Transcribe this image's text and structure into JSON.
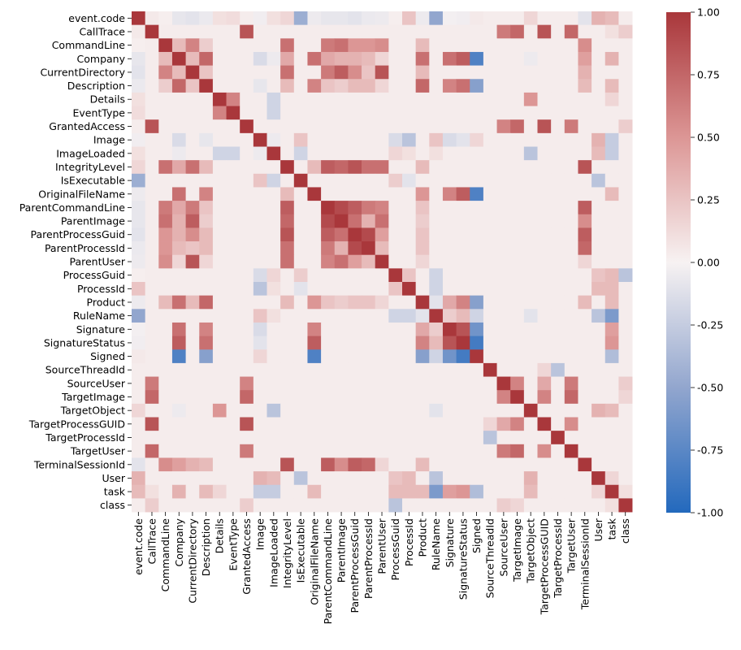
{
  "chart_data": {
    "type": "heatmap",
    "title": "",
    "labels": [
      "event.code",
      "CallTrace",
      "CommandLine",
      "Company",
      "CurrentDirectory",
      "Description",
      "Details",
      "EventType",
      "GrantedAccess",
      "Image",
      "ImageLoaded",
      "IntegrityLevel",
      "IsExecutable",
      "OriginalFileName",
      "ParentCommandLine",
      "ParentImage",
      "ParentProcessGuid",
      "ParentProcessId",
      "ParentUser",
      "ProcessGuid",
      "ProcessId",
      "Product",
      "RuleName",
      "Signature",
      "SignatureStatus",
      "Signed",
      "SourceThreadId",
      "SourceUser",
      "TargetImage",
      "TargetObject",
      "TargetProcessGUID",
      "TargetProcessId",
      "TargetUser",
      "TerminalSessionId",
      "User",
      "task",
      "class"
    ],
    "vmin": -1.0,
    "vmax": 1.0,
    "colormap": "vlag",
    "colorbar_ticks": [
      "1.00",
      "0.75",
      "0.50",
      "0.25",
      "0.00",
      "-0.25",
      "-0.50",
      "-0.75",
      "-1.00"
    ],
    "colorbar_tick_values": [
      1.0,
      0.75,
      0.5,
      0.25,
      0.0,
      -0.25,
      -0.5,
      -0.75,
      -1.0
    ],
    "default_value": 0.03,
    "cells": [
      [
        0,
        1,
        0.05
      ],
      [
        0,
        2,
        0.02
      ],
      [
        0,
        3,
        -0.08
      ],
      [
        0,
        4,
        -0.1
      ],
      [
        0,
        5,
        -0.06
      ],
      [
        0,
        6,
        0.1
      ],
      [
        0,
        7,
        0.12
      ],
      [
        0,
        9,
        -0.03
      ],
      [
        0,
        10,
        0.1
      ],
      [
        0,
        11,
        0.15
      ],
      [
        0,
        12,
        -0.45
      ],
      [
        0,
        13,
        -0.05
      ],
      [
        0,
        14,
        -0.08
      ],
      [
        0,
        15,
        -0.08
      ],
      [
        0,
        16,
        -0.1
      ],
      [
        0,
        17,
        -0.06
      ],
      [
        0,
        18,
        -0.05
      ],
      [
        0,
        19,
        0.02
      ],
      [
        0,
        20,
        0.25
      ],
      [
        0,
        21,
        -0.05
      ],
      [
        0,
        22,
        -0.5
      ],
      [
        0,
        23,
        -0.02
      ],
      [
        0,
        24,
        -0.03
      ],
      [
        0,
        25,
        0.05
      ],
      [
        0,
        29,
        0.15
      ],
      [
        0,
        33,
        -0.1
      ],
      [
        0,
        34,
        0.35
      ],
      [
        0,
        35,
        0.3
      ],
      [
        1,
        8,
        0.85
      ],
      [
        1,
        27,
        0.65
      ],
      [
        1,
        28,
        0.75
      ],
      [
        1,
        30,
        0.85
      ],
      [
        1,
        32,
        0.75
      ],
      [
        1,
        35,
        0.1
      ],
      [
        1,
        36,
        0.2
      ],
      [
        2,
        3,
        0.3
      ],
      [
        2,
        4,
        0.6
      ],
      [
        2,
        5,
        0.2
      ],
      [
        2,
        11,
        0.7
      ],
      [
        2,
        14,
        0.65
      ],
      [
        2,
        15,
        0.7
      ],
      [
        2,
        16,
        0.5
      ],
      [
        2,
        17,
        0.5
      ],
      [
        2,
        18,
        0.55
      ],
      [
        2,
        21,
        0.3
      ],
      [
        2,
        33,
        0.55
      ],
      [
        3,
        4,
        0.3
      ],
      [
        3,
        5,
        0.75
      ],
      [
        3,
        9,
        -0.15
      ],
      [
        3,
        10,
        -0.05
      ],
      [
        3,
        11,
        0.4
      ],
      [
        3,
        13,
        0.7
      ],
      [
        3,
        14,
        0.4
      ],
      [
        3,
        15,
        0.35
      ],
      [
        3,
        16,
        0.35
      ],
      [
        3,
        17,
        0.3
      ],
      [
        3,
        18,
        0.15
      ],
      [
        3,
        21,
        0.7
      ],
      [
        3,
        23,
        0.7
      ],
      [
        3,
        24,
        0.8
      ],
      [
        3,
        25,
        -0.8
      ],
      [
        3,
        29,
        -0.05
      ],
      [
        3,
        33,
        0.45
      ],
      [
        3,
        35,
        0.35
      ],
      [
        4,
        5,
        0.25
      ],
      [
        4,
        11,
        0.7
      ],
      [
        4,
        14,
        0.65
      ],
      [
        4,
        15,
        0.8
      ],
      [
        4,
        16,
        0.55
      ],
      [
        4,
        17,
        0.25
      ],
      [
        4,
        18,
        0.85
      ],
      [
        4,
        21,
        0.3
      ],
      [
        4,
        33,
        0.35
      ],
      [
        5,
        9,
        -0.08
      ],
      [
        5,
        11,
        0.3
      ],
      [
        5,
        13,
        0.6
      ],
      [
        5,
        14,
        0.25
      ],
      [
        5,
        15,
        0.2
      ],
      [
        5,
        16,
        0.3
      ],
      [
        5,
        17,
        0.3
      ],
      [
        5,
        18,
        0.15
      ],
      [
        5,
        21,
        0.75
      ],
      [
        5,
        23,
        0.6
      ],
      [
        5,
        24,
        0.7
      ],
      [
        5,
        25,
        -0.55
      ],
      [
        5,
        33,
        0.3
      ],
      [
        5,
        35,
        0.3
      ],
      [
        6,
        7,
        0.6
      ],
      [
        6,
        10,
        -0.2
      ],
      [
        6,
        29,
        0.5
      ],
      [
        6,
        35,
        0.15
      ],
      [
        7,
        10,
        -0.2
      ],
      [
        8,
        30,
        0.85
      ],
      [
        8,
        27,
        0.6
      ],
      [
        8,
        28,
        0.75
      ],
      [
        8,
        32,
        0.65
      ],
      [
        8,
        36,
        0.2
      ],
      [
        9,
        10,
        -0.05
      ],
      [
        9,
        12,
        0.25
      ],
      [
        9,
        19,
        -0.15
      ],
      [
        9,
        20,
        -0.3
      ],
      [
        9,
        22,
        0.25
      ],
      [
        9,
        23,
        -0.15
      ],
      [
        9,
        24,
        -0.1
      ],
      [
        9,
        25,
        0.15
      ],
      [
        9,
        34,
        0.35
      ],
      [
        9,
        35,
        -0.25
      ],
      [
        10,
        12,
        -0.2
      ],
      [
        10,
        19,
        0.15
      ],
      [
        10,
        20,
        0.1
      ],
      [
        10,
        22,
        0.1
      ],
      [
        10,
        29,
        -0.3
      ],
      [
        10,
        34,
        0.3
      ],
      [
        10,
        35,
        -0.25
      ],
      [
        11,
        13,
        0.3
      ],
      [
        11,
        14,
        0.8
      ],
      [
        11,
        15,
        0.75
      ],
      [
        11,
        16,
        0.85
      ],
      [
        11,
        17,
        0.7
      ],
      [
        11,
        18,
        0.7
      ],
      [
        11,
        21,
        0.3
      ],
      [
        11,
        33,
        0.85
      ],
      [
        12,
        19,
        0.2
      ],
      [
        12,
        20,
        -0.1
      ],
      [
        12,
        34,
        -0.3
      ],
      [
        13,
        21,
        0.5
      ],
      [
        13,
        23,
        0.6
      ],
      [
        13,
        24,
        0.8
      ],
      [
        13,
        25,
        -0.8
      ],
      [
        13,
        35,
        0.3
      ],
      [
        14,
        15,
        0.9
      ],
      [
        14,
        16,
        0.8
      ],
      [
        14,
        17,
        0.65
      ],
      [
        14,
        18,
        0.6
      ],
      [
        14,
        21,
        0.25
      ],
      [
        14,
        33,
        0.8
      ],
      [
        15,
        16,
        0.7
      ],
      [
        15,
        17,
        0.35
      ],
      [
        15,
        18,
        0.7
      ],
      [
        15,
        21,
        0.2
      ],
      [
        15,
        33,
        0.55
      ],
      [
        16,
        17,
        0.9
      ],
      [
        16,
        18,
        0.45
      ],
      [
        16,
        21,
        0.25
      ],
      [
        16,
        33,
        0.8
      ],
      [
        17,
        18,
        0.3
      ],
      [
        17,
        21,
        0.25
      ],
      [
        17,
        33,
        0.75
      ],
      [
        18,
        21,
        0.15
      ],
      [
        18,
        33,
        0.15
      ],
      [
        19,
        20,
        0.25
      ],
      [
        19,
        22,
        -0.2
      ],
      [
        19,
        34,
        0.25
      ],
      [
        19,
        35,
        0.3
      ],
      [
        19,
        36,
        -0.3
      ],
      [
        20,
        22,
        -0.2
      ],
      [
        20,
        34,
        0.3
      ],
      [
        20,
        35,
        0.3
      ],
      [
        21,
        22,
        -0.1
      ],
      [
        21,
        23,
        0.4
      ],
      [
        21,
        24,
        0.6
      ],
      [
        21,
        25,
        -0.55
      ],
      [
        21,
        33,
        0.3
      ],
      [
        21,
        35,
        0.3
      ],
      [
        22,
        23,
        0.2
      ],
      [
        22,
        24,
        0.3
      ],
      [
        22,
        25,
        -0.2
      ],
      [
        22,
        29,
        -0.1
      ],
      [
        22,
        34,
        -0.3
      ],
      [
        22,
        35,
        -0.6
      ],
      [
        23,
        24,
        0.85
      ],
      [
        23,
        25,
        -0.65
      ],
      [
        23,
        35,
        0.45
      ],
      [
        24,
        25,
        -0.85
      ],
      [
        24,
        35,
        0.5
      ],
      [
        25,
        35,
        -0.35
      ],
      [
        26,
        31,
        -0.3
      ],
      [
        26,
        30,
        0.15
      ],
      [
        27,
        28,
        0.6
      ],
      [
        27,
        30,
        0.4
      ],
      [
        27,
        32,
        0.65
      ],
      [
        27,
        36,
        0.2
      ],
      [
        28,
        30,
        0.6
      ],
      [
        28,
        32,
        0.75
      ],
      [
        28,
        36,
        0.15
      ],
      [
        29,
        34,
        0.35
      ],
      [
        29,
        35,
        0.3
      ],
      [
        30,
        32,
        0.55
      ],
      [
        34,
        35,
        0.15
      ],
      [
        35,
        36,
        0.1
      ]
    ]
  }
}
